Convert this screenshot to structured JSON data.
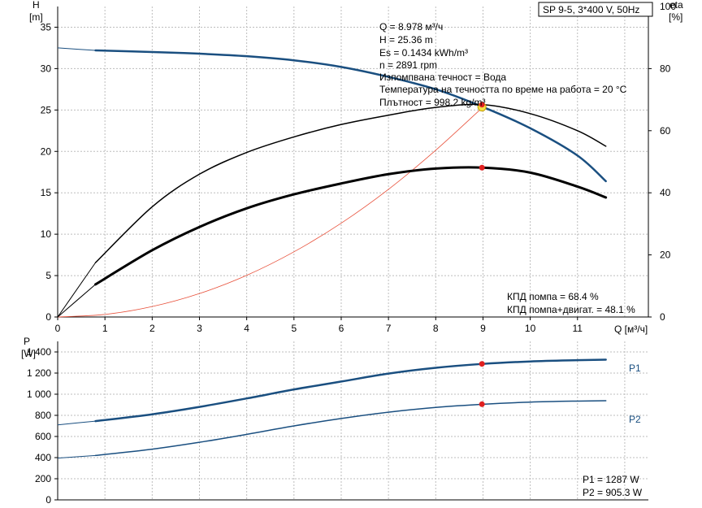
{
  "title_box": "SP 9-5, 3*400 V, 50Hz",
  "info": {
    "q": "Q = 8.978 м³/ч",
    "h": "H = 25.36 m",
    "es": "Es = 0.1434 kWh/m³",
    "n": "n = 2891 rpm",
    "liquid": "Изпомпвана течност = Вода",
    "temp": "Температура на течността по време на работа = 20 °C",
    "density": "Плътност = 998.2 kg/m³"
  },
  "eff_info": {
    "pump": "КПД помпа = 68.4 %",
    "total": "КПД помпа+двигат. = 48.1 %"
  },
  "power_info": {
    "p1": "P1 = 1287 W",
    "p2": "P2 = 905.3 W"
  },
  "colors": {
    "head": "#1a4f80",
    "power": "#1a4f80",
    "system": "#e8503a",
    "efficiency": "#000000",
    "marker": "#e02020",
    "duty": "#f3e04a"
  },
  "chart_data": [
    {
      "type": "line",
      "name": "head-efficiency",
      "xlabel": "Q [м³/ч]",
      "ylabel_top": "H",
      "ylabel_unit": "[m]",
      "y2label_top": "eta",
      "y2label_unit": "[%]",
      "xlim": [
        0,
        12.5
      ],
      "ylim": [
        0,
        37.5
      ],
      "y2lim": [
        0,
        100
      ],
      "xticks": [
        "0",
        "1",
        "2",
        "3",
        "4",
        "5",
        "6",
        "7",
        "8",
        "9",
        "10",
        "11"
      ],
      "yticks": [
        "0",
        "5",
        "10",
        "15",
        "20",
        "25",
        "30",
        "35"
      ],
      "y2ticks": [
        "0",
        "20",
        "40",
        "60",
        "80",
        "100"
      ],
      "grid": true,
      "series": [
        {
          "key": "head",
          "axis": "y",
          "x": [
            0,
            0.8,
            2,
            3,
            4,
            5,
            6,
            7,
            8,
            9,
            10,
            11,
            11.6
          ],
          "y": [
            32.5,
            32.2,
            32.0,
            31.8,
            31.5,
            31.0,
            30.2,
            29.0,
            27.5,
            25.36,
            22.8,
            19.5,
            16.4
          ],
          "dashed_to": 0.8
        },
        {
          "key": "system",
          "axis": "y",
          "x": [
            0,
            1,
            2,
            3,
            4,
            5,
            6,
            7,
            8,
            9
          ],
          "y": [
            0,
            0.31,
            1.26,
            2.83,
            5.03,
            7.87,
            11.33,
            15.42,
            20.14,
            25.36
          ]
        },
        {
          "key": "eff_pump",
          "axis": "y2",
          "x": [
            0,
            0.8,
            2,
            3,
            4,
            5,
            6,
            7,
            8,
            9,
            10,
            11,
            11.6
          ],
          "y": [
            0,
            17.5,
            35.5,
            46,
            53,
            58,
            62,
            65,
            67.5,
            68.4,
            65.5,
            60,
            55
          ],
          "dashed_to": 0.8
        },
        {
          "key": "eff_total",
          "axis": "y2",
          "x": [
            0,
            0.8,
            2,
            3,
            4,
            5,
            6,
            7,
            8,
            9,
            10,
            11,
            11.6
          ],
          "y": [
            0,
            10.5,
            21.5,
            29,
            35,
            39.5,
            43,
            46,
            47.8,
            48.1,
            46.5,
            42,
            38.5
          ],
          "dashed_to": 0.8
        }
      ],
      "duty_point": {
        "x": 8.978,
        "h": 25.36,
        "eff_pump": 68.4,
        "eff_total": 48.1
      }
    },
    {
      "type": "line",
      "name": "power",
      "xlabel": "",
      "ylabel_top": "P",
      "ylabel_unit": "[W]",
      "xlim": [
        0,
        12.5
      ],
      "ylim": [
        0,
        1500
      ],
      "yticks": [
        "0",
        "200",
        "400",
        "600",
        "800",
        "1 000",
        "1 200",
        "1 400"
      ],
      "grid": true,
      "series": [
        {
          "key": "p1",
          "name": "P1",
          "x": [
            0,
            0.8,
            2,
            3,
            4,
            5,
            6,
            7,
            8,
            9,
            10,
            11,
            11.6
          ],
          "y": [
            710,
            745,
            810,
            880,
            960,
            1045,
            1120,
            1195,
            1250,
            1287,
            1310,
            1322,
            1327
          ],
          "dashed_to": 0.8
        },
        {
          "key": "p2",
          "name": "P2",
          "x": [
            0,
            0.8,
            2,
            3,
            4,
            5,
            6,
            7,
            8,
            9,
            10,
            11,
            11.6
          ],
          "y": [
            395,
            420,
            480,
            545,
            620,
            700,
            770,
            830,
            875,
            905,
            925,
            935,
            938
          ],
          "dashed_to": 0.8
        }
      ],
      "duty_point": {
        "x": 8.978,
        "p1": 1287,
        "p2": 905.3
      }
    }
  ]
}
